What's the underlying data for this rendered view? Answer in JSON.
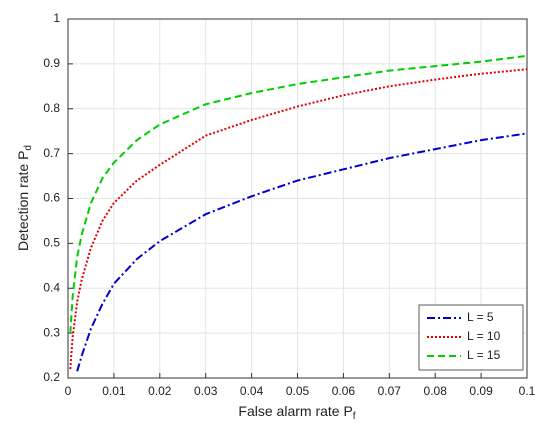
{
  "chart_data": {
    "type": "line",
    "xlabel": [
      "False alarm rate P",
      "f"
    ],
    "ylabel": [
      "Detection rate P",
      "d"
    ],
    "x": [
      0.0005,
      0.001,
      0.002,
      0.003,
      0.005,
      0.0075,
      0.01,
      0.015,
      0.02,
      0.03,
      0.04,
      0.05,
      0.06,
      0.07,
      0.08,
      0.09,
      0.1
    ],
    "series": [
      {
        "name": "L = 5",
        "color": "#0000cc",
        "style": "dashdot",
        "values": [
          null,
          null,
          0.215,
          0.25,
          0.31,
          0.365,
          0.41,
          0.465,
          0.505,
          0.565,
          0.605,
          0.64,
          0.665,
          0.69,
          0.71,
          0.73,
          0.745
        ]
      },
      {
        "name": "L = 10",
        "color": "#e00000",
        "style": "dotted",
        "values": [
          0.22,
          0.29,
          0.37,
          0.42,
          0.49,
          0.55,
          0.59,
          0.64,
          0.675,
          0.74,
          0.775,
          0.805,
          0.83,
          0.85,
          0.865,
          0.878,
          0.888
        ]
      },
      {
        "name": "L = 15",
        "color": "#00cc00",
        "style": "dashed",
        "values": [
          0.3,
          0.38,
          0.47,
          0.52,
          0.59,
          0.645,
          0.68,
          0.73,
          0.765,
          0.81,
          0.835,
          0.855,
          0.87,
          0.885,
          0.895,
          0.905,
          0.918
        ]
      }
    ],
    "xlim": [
      0,
      0.1
    ],
    "xticks": [
      0,
      0.01,
      0.02,
      0.03,
      0.04,
      0.05,
      0.06,
      0.07,
      0.08,
      0.09,
      0.1
    ],
    "ylim": [
      0.2,
      1
    ],
    "yticks": [
      0.2,
      0.3,
      0.4,
      0.5,
      0.6,
      0.7,
      0.8,
      0.9,
      1
    ],
    "grid": true,
    "legend": "lower-right"
  }
}
